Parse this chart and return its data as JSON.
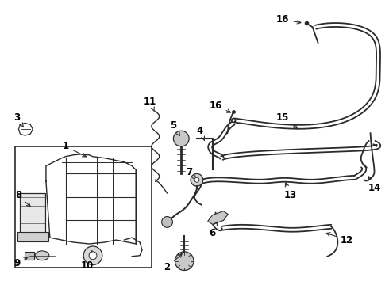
{
  "background_color": "#ffffff",
  "line_color": "#2a2a2a",
  "label_color": "#000000",
  "label_fontsize": 8.5,
  "fig_width": 4.9,
  "fig_height": 3.6,
  "dpi": 100
}
